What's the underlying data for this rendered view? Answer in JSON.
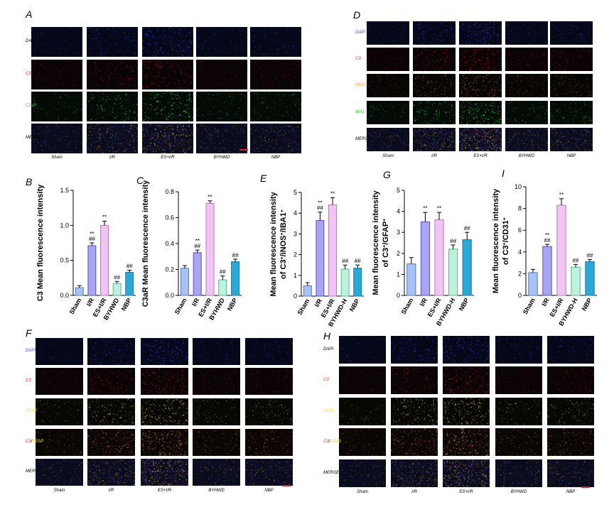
{
  "panel_letters": {
    "A": "A",
    "B": "B",
    "C": "C",
    "D": "D",
    "E": "E",
    "F": "F",
    "G": "G",
    "H": "H",
    "I": "I"
  },
  "colors": {
    "bar_fills": [
      "#a8c2f3",
      "#a9a5f1",
      "#f2c4f4",
      "#bef2df",
      "#2aa9d8"
    ],
    "bar_strokes": [
      "#5577c8",
      "#5751c2",
      "#b47ab8",
      "#55b696",
      "#1a7aa6"
    ],
    "label_blue": "#3a4de8",
    "label_red": "#e8262a",
    "label_green": "#35c735",
    "label_orange": "#f0a020",
    "label_yellow": "#e8e030"
  },
  "micrographs": {
    "A": {
      "rows": [
        {
          "text": "DAPI",
          "color": "#000000"
        },
        {
          "text": "C3",
          "color": "#e8262a"
        },
        {
          "text": "C3aR",
          "color": "#35c735"
        },
        {
          "text": "MERGE",
          "color": "#000000"
        }
      ],
      "cols": [
        "Sham",
        "I/R",
        "ES+I/R",
        "BYHWD",
        "NBP"
      ],
      "channels": [
        "blue",
        "red",
        "green",
        "merge"
      ]
    },
    "D": {
      "rows": [
        {
          "text": "DAPI",
          "color": "#3a4de8"
        },
        {
          "text": "C3",
          "color": "#e8262a"
        },
        {
          "text": "iNOS",
          "color": "#f0a020"
        },
        {
          "text": "IBA1",
          "color": "#35c735"
        },
        {
          "text": "MERGE",
          "color": "#000000"
        }
      ],
      "cols": [
        "Sham",
        "I/R",
        "ES+I/R",
        "BYHWD",
        "NBP"
      ],
      "channels": [
        "blue",
        "red",
        "orange",
        "green",
        "merge"
      ]
    },
    "F": {
      "rows": [
        {
          "parts": [
            {
              "text": "DAPI",
              "color": "#3a4de8"
            }
          ]
        },
        {
          "parts": [
            {
              "text": "C3",
              "color": "#e8262a"
            }
          ]
        },
        {
          "parts": [
            {
              "text": "GFAP",
              "color": "#e8e030"
            }
          ]
        },
        {
          "parts": [
            {
              "text": "C3",
              "color": "#e8262a"
            },
            {
              "text": "/",
              "color": "#000000"
            },
            {
              "text": "GFAP",
              "color": "#e8e030"
            }
          ]
        },
        {
          "parts": [
            {
              "text": "MERGE",
              "color": "#000000"
            }
          ]
        }
      ],
      "cols": [
        "Sham",
        "I/R",
        "ES+I/R",
        "BYHWD",
        "NBP"
      ],
      "channels": [
        "blue",
        "red",
        "yellow",
        "yellowred",
        "merge"
      ]
    },
    "H": {
      "rows": [
        {
          "parts": [
            {
              "text": "DAPI",
              "color": "#000000"
            }
          ]
        },
        {
          "parts": [
            {
              "text": "C3",
              "color": "#e8262a"
            }
          ]
        },
        {
          "parts": [
            {
              "text": "CD31",
              "color": "#e8e030"
            }
          ]
        },
        {
          "parts": [
            {
              "text": "C3",
              "color": "#e8262a"
            },
            {
              "text": "/",
              "color": "#000000"
            },
            {
              "text": "CD31",
              "color": "#e8e030"
            }
          ]
        },
        {
          "parts": [
            {
              "text": "MERGE",
              "color": "#000000"
            }
          ]
        }
      ],
      "cols": [
        "Sham",
        "I/R",
        "ES+I/R",
        "BYHWD",
        "NBP"
      ],
      "channels": [
        "blue",
        "red",
        "yellow",
        "yellowred",
        "merge"
      ]
    }
  },
  "chart_data": [
    {
      "panel": "B",
      "type": "bar",
      "ylabel": "C3 Mean fluorescence intensity",
      "categories": [
        "Sham",
        "I/R",
        "ES+I/R",
        "BYHWD",
        "NBP"
      ],
      "values": [
        0.11,
        0.71,
        1.0,
        0.17,
        0.33
      ],
      "errors": [
        0.03,
        0.04,
        0.06,
        0.03,
        0.03
      ],
      "ylim": [
        0,
        1.5
      ],
      "yticks": [
        "0.0",
        "0.5",
        "1.0",
        "1.5"
      ],
      "annotations": [
        [],
        [
          "**",
          "##"
        ],
        [
          "**"
        ],
        [
          "##"
        ],
        [
          "##"
        ]
      ]
    },
    {
      "panel": "C",
      "type": "bar",
      "ylabel": "C3aR Mean fluorescence intensity",
      "categories": [
        "Sham",
        "I/R",
        "ES+I/R",
        "BYHWD",
        "NBP"
      ],
      "values": [
        0.21,
        0.33,
        0.71,
        0.12,
        0.26
      ],
      "errors": [
        0.02,
        0.02,
        0.02,
        0.03,
        0.02
      ],
      "ylim": [
        0,
        0.8
      ],
      "yticks": [
        "0.0",
        "0.2",
        "0.4",
        "0.6",
        "0.8"
      ],
      "annotations": [
        [],
        [
          "**",
          "##"
        ],
        [
          "**"
        ],
        [
          "##"
        ],
        [
          "##"
        ]
      ]
    },
    {
      "panel": "E",
      "type": "bar",
      "ylabel_lines": [
        [
          {
            "t": "Mean fluorescence intensity"
          }
        ],
        [
          {
            "t": "of C3"
          },
          {
            "t": "+",
            "sup": true
          },
          {
            "t": "/iNOS"
          },
          {
            "t": "+",
            "sup": true
          },
          {
            "t": "/IBA1"
          },
          {
            "t": "+",
            "sup": true
          }
        ]
      ],
      "categories": [
        "Sham",
        "I/R",
        "ES+I/R",
        "BYHWD-H",
        "NBP"
      ],
      "values": [
        0.5,
        3.65,
        4.4,
        1.3,
        1.35
      ],
      "errors": [
        0.15,
        0.4,
        0.35,
        0.2,
        0.15
      ],
      "ylim": [
        0,
        5
      ],
      "yticks": [
        "0",
        "1",
        "2",
        "3",
        "4",
        "5"
      ],
      "annotations": [
        [],
        [
          "**",
          "##"
        ],
        [
          "**"
        ],
        [
          "##"
        ],
        [
          "##"
        ]
      ]
    },
    {
      "panel": "G",
      "type": "bar",
      "ylabel_lines": [
        [
          {
            "t": "Mean fluorescence intensity"
          }
        ],
        [
          {
            "t": "of C3"
          },
          {
            "t": "+",
            "sup": true
          },
          {
            "t": "/GFAP"
          },
          {
            "t": "+",
            "sup": true
          }
        ]
      ],
      "categories": [
        "Sham",
        "I/R",
        "ES+I/R",
        "BYHWD-H",
        "NBP"
      ],
      "values": [
        1.5,
        3.5,
        3.6,
        2.2,
        2.65
      ],
      "errors": [
        0.3,
        0.45,
        0.35,
        0.2,
        0.35
      ],
      "ylim": [
        0,
        5
      ],
      "yticks": [
        "0",
        "1",
        "2",
        "3",
        "4",
        "5"
      ],
      "annotations": [
        [],
        [
          "**"
        ],
        [
          "**"
        ],
        [
          "##"
        ],
        [
          "##"
        ]
      ]
    },
    {
      "panel": "I",
      "type": "bar",
      "ylabel_lines": [
        [
          {
            "t": "Mean fluorescence intensity"
          }
        ],
        [
          {
            "t": "of C3"
          },
          {
            "t": "+",
            "sup": true
          },
          {
            "t": "/CD31"
          },
          {
            "t": "+",
            "sup": true
          }
        ]
      ],
      "categories": [
        "Sham",
        "I/R",
        "ES+I/R",
        "BYHWD-H",
        "NBP"
      ],
      "values": [
        2.1,
        4.5,
        8.3,
        2.6,
        3.1
      ],
      "errors": [
        0.3,
        0.2,
        0.6,
        0.25,
        0.2
      ],
      "ylim": [
        0,
        10
      ],
      "yticks": [
        "0",
        "2",
        "4",
        "6",
        "8",
        "10"
      ],
      "annotations": [
        [],
        [
          "**",
          "##"
        ],
        [
          "**"
        ],
        [
          "##"
        ],
        [
          "##"
        ]
      ]
    }
  ]
}
